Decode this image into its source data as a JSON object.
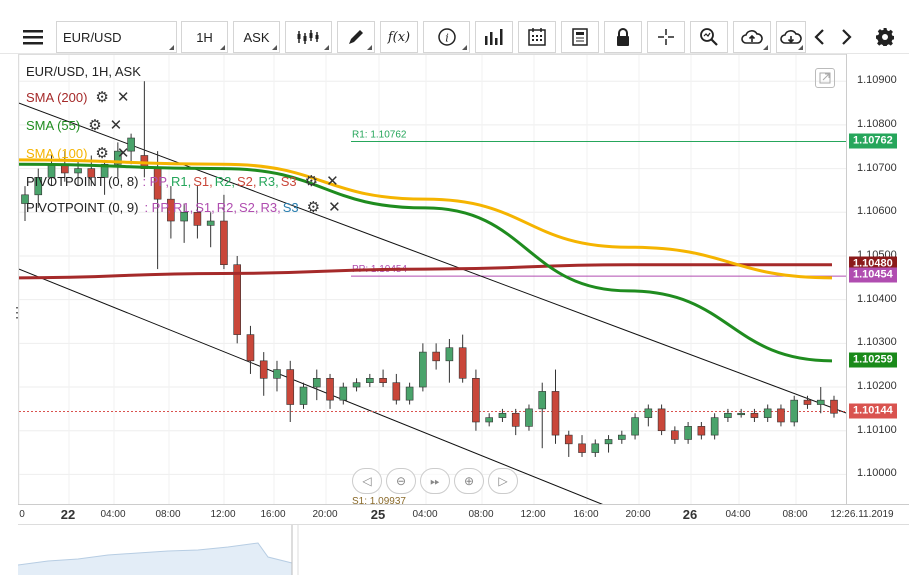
{
  "toolbar": {
    "symbol": "EUR/USD",
    "timeframe": "1H",
    "price_type": "ASK",
    "fx_label": "f(x)"
  },
  "legend": {
    "instrument": "EUR/USD, 1H, ASK",
    "sma200": "SMA (200)",
    "sma55": "SMA (55)",
    "sma100": "SMA (100)",
    "pivot1_name": "PIVOTPOINT (0, 8)",
    "pivot2_name": "PIVOTPOINT (0, 9)",
    "pivot_levels": [
      ": PP,",
      "R1,",
      "S1,",
      "R2,",
      "S2,",
      "R3,",
      "S3"
    ]
  },
  "annotations": {
    "r1": "R1: 1.10762",
    "pp": "PP: 1.10454",
    "s1": "S1: 1.09937"
  },
  "yaxis": {
    "ticks": [
      "1.10900",
      "1.10800",
      "1.10700",
      "1.10600",
      "1.10500",
      "1.10400",
      "1.10300",
      "1.10200",
      "1.10100",
      "1.10000"
    ],
    "tags": [
      {
        "label": "1.10762",
        "color": "#26a65b"
      },
      {
        "label": "1.10480",
        "color": "#8b1a1a"
      },
      {
        "label": "1.10454",
        "color": "#b04db0"
      },
      {
        "label": "1.10259",
        "color": "#1a8a1a"
      },
      {
        "label": "1.10144",
        "color": "#d9534f"
      }
    ]
  },
  "xaxis": {
    "labels": [
      "0",
      "22",
      "04:00",
      "08:00",
      "12:00",
      "16:00",
      "20:00",
      "25",
      "04:00",
      "08:00",
      "12:00",
      "16:00",
      "20:00",
      "26",
      "04:00",
      "08:00",
      "12:26.11.2019"
    ]
  },
  "colors": {
    "sma200": "#a52a2a",
    "sma55": "#1f8c1f",
    "sma100": "#f5b400",
    "up": "#4aa36b",
    "down": "#c9473a",
    "pp": "#b04db0",
    "r1": "#26a65b"
  },
  "nav_buttons": [
    "prev",
    "zoom-out",
    "fit",
    "zoom-in",
    "next"
  ],
  "chart_data": {
    "type": "candlestick",
    "title": "EUR/USD, 1H, ASK",
    "ylim": [
      1.0993,
      1.1096
    ],
    "candles": [
      [
        1.1062,
        1.1066,
        1.1058,
        1.1064
      ],
      [
        1.1064,
        1.107,
        1.1061,
        1.1068
      ],
      [
        1.1068,
        1.1073,
        1.1066,
        1.1071
      ],
      [
        1.1071,
        1.1074,
        1.1067,
        1.1069
      ],
      [
        1.1069,
        1.1072,
        1.1066,
        1.107
      ],
      [
        1.107,
        1.1073,
        1.1066,
        1.1068
      ],
      [
        1.1068,
        1.1072,
        1.1064,
        1.1071
      ],
      [
        1.1071,
        1.1076,
        1.1068,
        1.1074
      ],
      [
        1.1074,
        1.1078,
        1.1071,
        1.1077
      ],
      [
        1.1073,
        1.109,
        1.1068,
        1.107
      ],
      [
        1.107,
        1.1074,
        1.1047,
        1.1063
      ],
      [
        1.1063,
        1.1066,
        1.1054,
        1.1058
      ],
      [
        1.1058,
        1.1062,
        1.1053,
        1.106
      ],
      [
        1.106,
        1.1066,
        1.1054,
        1.1057
      ],
      [
        1.1057,
        1.106,
        1.1052,
        1.1058
      ],
      [
        1.1058,
        1.1064,
        1.1047,
        1.1048
      ],
      [
        1.1048,
        1.105,
        1.103,
        1.1032
      ],
      [
        1.1032,
        1.1034,
        1.1023,
        1.1026
      ],
      [
        1.1026,
        1.1028,
        1.1018,
        1.1022
      ],
      [
        1.1022,
        1.1026,
        1.1019,
        1.1024
      ],
      [
        1.1024,
        1.1026,
        1.1012,
        1.1016
      ],
      [
        1.1016,
        1.1021,
        1.1015,
        1.102
      ],
      [
        1.102,
        1.1024,
        1.1017,
        1.1022
      ],
      [
        1.1022,
        1.1023,
        1.1015,
        1.1017
      ],
      [
        1.1017,
        1.1021,
        1.1016,
        1.102
      ],
      [
        1.102,
        1.1022,
        1.1019,
        1.1021
      ],
      [
        1.1021,
        1.1023,
        1.102,
        1.1022
      ],
      [
        1.1022,
        1.1024,
        1.102,
        1.1021
      ],
      [
        1.1021,
        1.1023,
        1.1016,
        1.1017
      ],
      [
        1.1017,
        1.1021,
        1.1016,
        1.102
      ],
      [
        1.102,
        1.103,
        1.1019,
        1.1028
      ],
      [
        1.1028,
        1.103,
        1.1024,
        1.1026
      ],
      [
        1.1026,
        1.1031,
        1.1021,
        1.1029
      ],
      [
        1.1029,
        1.1032,
        1.1021,
        1.1022
      ],
      [
        1.1022,
        1.1024,
        1.101,
        1.1012
      ],
      [
        1.1012,
        1.1014,
        1.1011,
        1.1013
      ],
      [
        1.1013,
        1.1015,
        1.1012,
        1.1014
      ],
      [
        1.1014,
        1.1015,
        1.1009,
        1.1011
      ],
      [
        1.1011,
        1.1016,
        1.101,
        1.1015
      ],
      [
        1.1015,
        1.1021,
        1.1006,
        1.1019
      ],
      [
        1.1019,
        1.1024,
        1.1007,
        1.1009
      ],
      [
        1.1009,
        1.101,
        1.1004,
        1.1007
      ],
      [
        1.1007,
        1.1009,
        1.1004,
        1.1005
      ],
      [
        1.1005,
        1.1008,
        1.1004,
        1.1007
      ],
      [
        1.1007,
        1.1009,
        1.1005,
        1.1008
      ],
      [
        1.1008,
        1.101,
        1.1007,
        1.1009
      ],
      [
        1.1009,
        1.1014,
        1.1008,
        1.1013
      ],
      [
        1.1013,
        1.1016,
        1.1011,
        1.1015
      ],
      [
        1.1015,
        1.1016,
        1.1009,
        1.101
      ],
      [
        1.101,
        1.1011,
        1.1007,
        1.1008
      ],
      [
        1.1008,
        1.1012,
        1.1007,
        1.1011
      ],
      [
        1.1011,
        1.1012,
        1.1008,
        1.1009
      ],
      [
        1.1009,
        1.1014,
        1.1008,
        1.1013
      ],
      [
        1.1013,
        1.1015,
        1.1012,
        1.1014
      ],
      [
        1.1014,
        1.1015,
        1.1013,
        1.1014
      ],
      [
        1.1014,
        1.1015,
        1.1012,
        1.1013
      ],
      [
        1.1013,
        1.1016,
        1.1012,
        1.1015
      ],
      [
        1.1015,
        1.1016,
        1.1011,
        1.1012
      ],
      [
        1.1012,
        1.1018,
        1.1011,
        1.1017
      ],
      [
        1.1017,
        1.1018,
        1.1015,
        1.1016
      ],
      [
        1.1016,
        1.102,
        1.1014,
        1.1017
      ],
      [
        1.1017,
        1.1018,
        1.1013,
        1.1014
      ]
    ],
    "sma200": [
      1.1045,
      1.1046,
      1.1047,
      1.1048,
      1.1048
    ],
    "sma55": [
      1.1071,
      1.107,
      1.1061,
      1.1042,
      1.1026
    ],
    "sma100": [
      1.1072,
      1.1071,
      1.1063,
      1.1052,
      1.1045
    ],
    "pivot_r1": 1.10762,
    "pivot_pp": 1.10454,
    "pivot_s1": 1.09937,
    "last_price": 1.10144
  }
}
